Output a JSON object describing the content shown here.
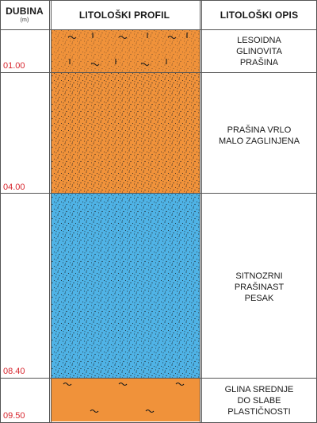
{
  "header": {
    "depth_title": "DUBINA",
    "depth_unit": "(m)",
    "profile_title": "LITOLOŠKI PROFIL",
    "description_title": "LITOLOŠKI OPIS"
  },
  "layers": [
    {
      "bottom_depth_label": "01.00",
      "description_lines": [
        "LESOIDNA",
        "GLINOVITA",
        "PRAŠINA"
      ],
      "fill_color": "#f0923a",
      "pattern": "loess-dots-tilde"
    },
    {
      "bottom_depth_label": "04.00",
      "description_lines": [
        "PRAŠINA VRLO",
        "MALO ZAGLINJENA"
      ],
      "fill_color": "#f0923a",
      "pattern": "dots"
    },
    {
      "bottom_depth_label": "08.40",
      "description_lines": [
        "SITNOZRNI",
        "PRAŠINAST",
        "PESAK"
      ],
      "fill_color": "#4fb3e6",
      "pattern": "dots"
    },
    {
      "bottom_depth_label": "09.50",
      "description_lines": [
        "GLINA SREDNJE",
        "DO SLABE",
        "PLASTIČNOSTI"
      ],
      "fill_color": "#f0923a",
      "pattern": "tilde"
    }
  ],
  "colors": {
    "depth_label": "#d7262e",
    "border": "#555555",
    "text": "#1a1a1a"
  }
}
